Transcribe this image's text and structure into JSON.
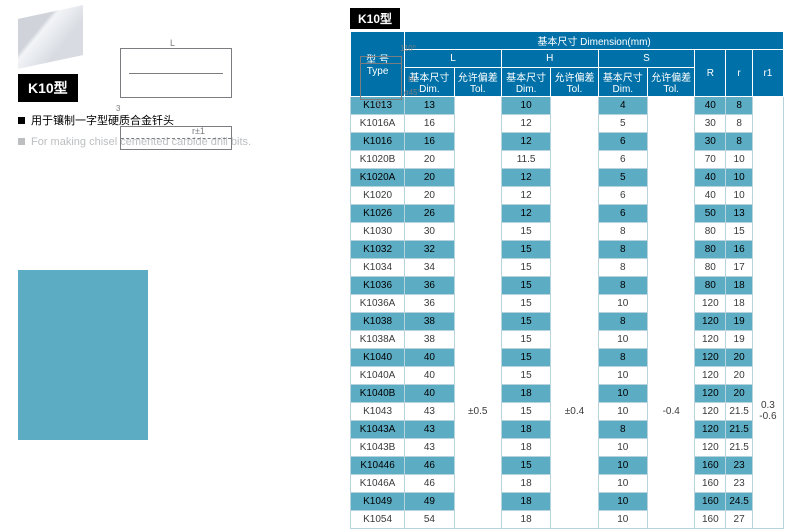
{
  "left": {
    "badge": "K10型",
    "bullet_zh": "用于镶制一字型硬质合金钎头",
    "bullet_en": "For making chisel cemented carbide drill bits.",
    "diagram": {
      "L": "L",
      "r": "r±1",
      "s3": "3",
      "ang": "110°",
      "H": "H",
      "s": "S",
      "ang2": "α45°"
    }
  },
  "table": {
    "tab": "K10型",
    "head": {
      "type1": "型 号",
      "type2": "Type",
      "dimTitle": "基本尺寸 Dimension(mm)",
      "L": "L",
      "H": "H",
      "S": "S",
      "R": "R",
      "r": "r",
      "r1": "r1",
      "dim": "基本尺寸",
      "dim2": "Dim.",
      "tol": "允许偏差",
      "tol2": "Tol.",
      "Ltol": "±0.5",
      "Htol": "±0.4",
      "Stol": "-0.4",
      "r1val": "0.3\n-0.6"
    },
    "rows": [
      {
        "hi": 1,
        "t": "K1013",
        "L": "13",
        "H": "10",
        "S": "4",
        "R": "40",
        "r": "8"
      },
      {
        "hi": 0,
        "t": "K1016A",
        "L": "16",
        "H": "12",
        "S": "5",
        "R": "30",
        "r": "8"
      },
      {
        "hi": 1,
        "t": "K1016",
        "L": "16",
        "H": "12",
        "S": "6",
        "R": "30",
        "r": "8"
      },
      {
        "hi": 0,
        "t": "K1020B",
        "L": "20",
        "H": "11.5",
        "S": "6",
        "R": "70",
        "r": "10"
      },
      {
        "hi": 1,
        "t": "K1020A",
        "L": "20",
        "H": "12",
        "S": "5",
        "R": "40",
        "r": "10"
      },
      {
        "hi": 0,
        "t": "K1020",
        "L": "20",
        "H": "12",
        "S": "6",
        "R": "40",
        "r": "10"
      },
      {
        "hi": 1,
        "t": "K1026",
        "L": "26",
        "H": "12",
        "S": "6",
        "R": "50",
        "r": "13"
      },
      {
        "hi": 0,
        "t": "K1030",
        "L": "30",
        "H": "15",
        "S": "8",
        "R": "80",
        "r": "15"
      },
      {
        "hi": 1,
        "t": "K1032",
        "L": "32",
        "H": "15",
        "S": "8",
        "R": "80",
        "r": "16"
      },
      {
        "hi": 0,
        "t": "K1034",
        "L": "34",
        "H": "15",
        "S": "8",
        "R": "80",
        "r": "17"
      },
      {
        "hi": 1,
        "t": "K1036",
        "L": "36",
        "H": "15",
        "S": "8",
        "R": "80",
        "r": "18"
      },
      {
        "hi": 0,
        "t": "K1036A",
        "L": "36",
        "H": "15",
        "S": "10",
        "R": "120",
        "r": "18"
      },
      {
        "hi": 1,
        "t": "K1038",
        "L": "38",
        "H": "15",
        "S": "8",
        "R": "120",
        "r": "19"
      },
      {
        "hi": 0,
        "t": "K1038A",
        "L": "38",
        "H": "15",
        "S": "10",
        "R": "120",
        "r": "19"
      },
      {
        "hi": 1,
        "t": "K1040",
        "L": "40",
        "H": "15",
        "S": "8",
        "R": "120",
        "r": "20"
      },
      {
        "hi": 0,
        "t": "K1040A",
        "L": "40",
        "H": "15",
        "S": "10",
        "R": "120",
        "r": "20"
      },
      {
        "hi": 1,
        "t": "K1040B",
        "L": "40",
        "H": "18",
        "S": "10",
        "R": "120",
        "r": "20"
      },
      {
        "hi": 0,
        "t": "K1043",
        "L": "43",
        "H": "15",
        "S": "10",
        "R": "120",
        "r": "21.5"
      },
      {
        "hi": 1,
        "t": "K1043A",
        "L": "43",
        "H": "18",
        "S": "8",
        "R": "120",
        "r": "21.5"
      },
      {
        "hi": 0,
        "t": "K1043B",
        "L": "43",
        "H": "18",
        "S": "10",
        "R": "120",
        "r": "21.5"
      },
      {
        "hi": 1,
        "t": "K10446",
        "L": "46",
        "H": "15",
        "S": "10",
        "R": "160",
        "r": "23"
      },
      {
        "hi": 0,
        "t": "K1046A",
        "L": "46",
        "H": "18",
        "S": "10",
        "R": "160",
        "r": "23"
      },
      {
        "hi": 1,
        "t": "K1049",
        "L": "49",
        "H": "18",
        "S": "10",
        "R": "160",
        "r": "24.5"
      },
      {
        "hi": 0,
        "t": "K1054",
        "L": "54",
        "H": "18",
        "S": "10",
        "R": "160",
        "r": "27"
      }
    ]
  }
}
